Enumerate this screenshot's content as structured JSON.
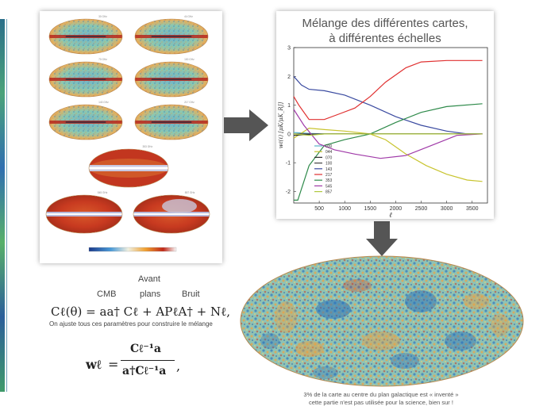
{
  "maps_panel": {
    "frequency_labels": [
      "30 GHz",
      "44 GHz",
      "70 GHz",
      "100 GHz",
      "143 GHz",
      "217 GHz",
      "353 GHz",
      "545 GHz",
      "857 GHz"
    ]
  },
  "chart_data": {
    "type": "line",
    "title_lines": [
      "Mélange des différentes cartes,",
      "à différentes échelles"
    ],
    "xlabel": "ℓ",
    "ylabel": "wℓ(ℓ)  [μK/μK_RJ]",
    "xlim": [
      0,
      3800
    ],
    "ylim": [
      -2.4,
      3
    ],
    "xticks": [
      500,
      1000,
      1500,
      2000,
      2500,
      3000,
      3500
    ],
    "yticks": [
      -2,
      -1,
      0,
      1,
      2,
      3
    ],
    "legend_position": "lower-left",
    "series": [
      {
        "name": "030",
        "color": "#5ab4c8",
        "x": [
          0,
          300,
          600,
          1000,
          1500,
          2000,
          2500,
          3000,
          3600
        ],
        "y": [
          0.05,
          0.02,
          0.0,
          0.0,
          0.0,
          0.0,
          0.0,
          0.0,
          0.0
        ]
      },
      {
        "name": "044",
        "color": "#c8c42e",
        "x": [
          0,
          300,
          600,
          1000,
          1500,
          1800,
          2200,
          2600,
          3000,
          3400,
          3700
        ],
        "y": [
          -0.15,
          0.2,
          0.15,
          0.1,
          0.0,
          -0.2,
          -0.7,
          -1.1,
          -1.4,
          -1.6,
          -1.65
        ]
      },
      {
        "name": "070",
        "color": "#2e2e2e",
        "x": [
          0,
          300,
          600,
          1000,
          1500,
          2000,
          2500,
          3000,
          3700
        ],
        "y": [
          -0.05,
          -0.02,
          0.0,
          0.0,
          0.0,
          0.0,
          0.0,
          0.0,
          0.0
        ]
      },
      {
        "name": "100",
        "color": "#444444",
        "x": [
          0,
          300,
          600,
          1000,
          1500,
          2000,
          2500,
          3000,
          3700
        ],
        "y": [
          0.0,
          0.0,
          0.0,
          0.0,
          0.0,
          0.0,
          0.0,
          0.0,
          0.0
        ]
      },
      {
        "name": "143",
        "color": "#3a4aa0",
        "x": [
          0,
          150,
          300,
          600,
          1000,
          1500,
          2000,
          2500,
          3000,
          3400,
          3700
        ],
        "y": [
          2.0,
          1.7,
          1.55,
          1.5,
          1.35,
          1.0,
          0.6,
          0.3,
          0.1,
          0.0,
          0.0
        ]
      },
      {
        "name": "217",
        "color": "#e03030",
        "x": [
          0,
          100,
          300,
          600,
          900,
          1200,
          1500,
          1800,
          2200,
          2500,
          3000,
          3700
        ],
        "y": [
          1.3,
          1.0,
          0.5,
          0.5,
          0.7,
          0.9,
          1.3,
          1.8,
          2.3,
          2.5,
          2.55,
          2.55
        ]
      },
      {
        "name": "353",
        "color": "#2e8a4a",
        "x": [
          0,
          80,
          300,
          600,
          1000,
          1500,
          2000,
          2500,
          3000,
          3700
        ],
        "y": [
          -2.3,
          -2.3,
          -1.1,
          -0.4,
          -0.2,
          0.0,
          0.4,
          0.75,
          0.95,
          1.05
        ]
      },
      {
        "name": "545",
        "color": "#a03aa8",
        "x": [
          0,
          200,
          500,
          800,
          1200,
          1700,
          2200,
          2700,
          3200,
          3700
        ],
        "y": [
          0.85,
          0.3,
          -0.35,
          -0.55,
          -0.7,
          -0.85,
          -0.75,
          -0.4,
          -0.05,
          0.0
        ]
      },
      {
        "name": "857",
        "color": "#b0c840",
        "x": [
          0,
          300,
          600,
          1000,
          1500,
          2000,
          2500,
          3000,
          3700
        ],
        "y": [
          0.0,
          -0.05,
          0.0,
          0.0,
          0.0,
          0.0,
          0.0,
          0.0,
          0.0
        ]
      }
    ]
  },
  "equation1": {
    "label_avant": "Avant",
    "label_plans": "plans",
    "label_cmb": "CMB",
    "label_bruit": "Bruit",
    "formula": "Cℓ(θ) = aa† Cℓ + APℓA† + Nℓ,",
    "note": "On ajuste tous ces paramètres pour construire le mélange"
  },
  "equation2": {
    "lhs": "wℓ",
    "equals": "=",
    "numerator": "Cℓ⁻¹a",
    "denominator": "a†Cℓ⁻¹a",
    "trailing": ","
  },
  "caption": {
    "line1": "3% de la carte au centre du plan galactique est « inventé »",
    "line2": "cette partie n'est pas utilisée pour la science, bien sur !"
  },
  "colors": {
    "arrow": "#555555",
    "map_cold": "#3a7fc0",
    "map_warm": "#e8a040",
    "map_hot": "#c83020"
  }
}
